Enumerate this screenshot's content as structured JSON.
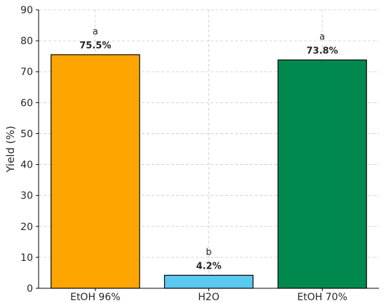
{
  "chart_data": {
    "type": "bar",
    "title": "",
    "xlabel": "",
    "ylabel": "Yield (%)",
    "ylim": [
      0,
      90
    ],
    "yticks": [
      0,
      10,
      20,
      30,
      40,
      50,
      60,
      70,
      80,
      90
    ],
    "grid": true,
    "categories": [
      "EtOH 96%",
      "H2O",
      "EtOH 70%"
    ],
    "values": [
      75.5,
      4.2,
      73.8
    ],
    "value_labels": [
      "75.5%",
      "4.2%",
      "73.8%"
    ],
    "significance_letters": [
      "a",
      "b",
      "a"
    ],
    "colors": [
      "#FFA500",
      "#5BC8F0",
      "#00894F"
    ]
  }
}
